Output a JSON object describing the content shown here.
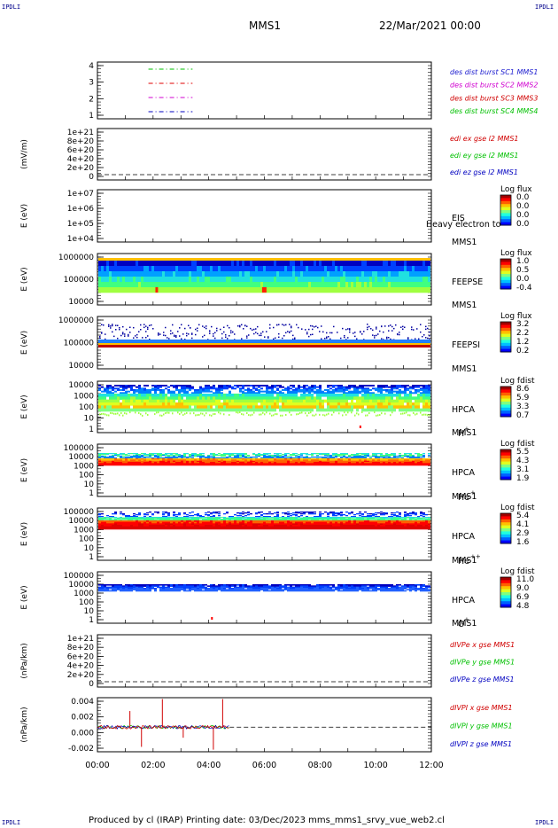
{
  "header": {
    "corner_label": "IPDLI",
    "mission": "MMS1",
    "datetime": "22/Mar/2021 00:00"
  },
  "footer": {
    "text": "Produced by cl (IRAP)   Printing date: 03/Dec/2023   mms_mms1_srvy_vue_web2.cl"
  },
  "colors": {
    "red": "#e00000",
    "green": "#00c000",
    "blue": "#0000c0",
    "magenta": "#d000d0",
    "darkred": "#c00000"
  },
  "chart_data": [
    {
      "type": "line",
      "panel": "burst",
      "yticks": [
        "4",
        "3",
        "2",
        "1"
      ],
      "ylim": [
        0.5,
        4.5
      ],
      "legend": [
        {
          "label": "des dist burst SC1 MMS1",
          "color": "#2020d0"
        },
        {
          "label": "des dist burst SC2 MMS2",
          "color": "#d000d0"
        },
        {
          "label": "des dist burst SC3 MMS3",
          "color": "#d00000"
        },
        {
          "label": "des dist burst SC4 MMS4",
          "color": "#00c000"
        }
      ],
      "series": [
        {
          "level": 4,
          "x_start": "01:50",
          "x_end": "03:25",
          "color": "#00c000"
        },
        {
          "level": 3,
          "x_start": "01:50",
          "x_end": "03:25",
          "color": "#e00000"
        },
        {
          "level": 2,
          "x_start": "01:50",
          "x_end": "03:25",
          "color": "#d000d0"
        },
        {
          "level": 1,
          "x_start": "01:50",
          "x_end": "03:25",
          "color": "#0000c0"
        }
      ]
    },
    {
      "type": "line",
      "panel": "edi",
      "ylabel": "(mV/m)",
      "yticks": [
        "1e+21",
        "8e+20",
        "6e+20",
        "4e+20",
        "2e+20",
        "0"
      ],
      "ylim": [
        0,
        1e+21
      ],
      "legend": [
        {
          "label": "edi ex gse l2 MMS1",
          "color": "#d00000"
        },
        {
          "label": "edi ey gse l2 MMS1",
          "color": "#00c000"
        },
        {
          "label": "edi ez gse l2 MMS1",
          "color": "#0000c0"
        }
      ]
    },
    {
      "type": "heatmap",
      "panel": "eis",
      "ylabel": "E (eV)",
      "yticks": [
        "1e+07",
        "1e+06",
        "1e+05",
        "1e+04"
      ],
      "instrument": "EIS",
      "instrument_line2": "MMS1",
      "overlay_text": "Heavy electron to",
      "cbar_title": "Log flux",
      "cbar_ticks": [
        "0.0",
        "0.0",
        "0.0",
        "0.0"
      ]
    },
    {
      "type": "heatmap",
      "panel": "feepse",
      "ylabel": "E (eV)",
      "yticks": [
        "1000000",
        "100000",
        "10000"
      ],
      "instrument": "FEEPSE",
      "instrument_line2": "MMS1",
      "cbar_title": "Log flux",
      "cbar_ticks": [
        "1.0",
        "0.5",
        "0.0",
        "-0.4"
      ]
    },
    {
      "type": "heatmap",
      "panel": "feepsi",
      "ylabel": "E (eV)",
      "yticks": [
        "1000000",
        "100000",
        "10000"
      ],
      "instrument": "FEEPSI",
      "instrument_line2": "MMS1",
      "cbar_title": "Log flux",
      "cbar_ticks": [
        "3.2",
        "2.2",
        "1.2",
        "0.2"
      ]
    },
    {
      "type": "heatmap",
      "panel": "hpca_h",
      "ylabel": "E (eV)",
      "yticks": [
        "10000",
        "1000",
        "100",
        "10",
        "1"
      ],
      "instrument": "HPCA",
      "instrument_line2": "MMS1",
      "species": "H",
      "species_charge": "+",
      "cbar_title": "Log fdist",
      "cbar_ticks": [
        "8.6",
        "5.9",
        "3.3",
        "0.7"
      ]
    },
    {
      "type": "heatmap",
      "panel": "hpca_he",
      "ylabel": "E (eV)",
      "yticks": [
        "100000",
        "10000",
        "1000",
        "100",
        "10",
        "1"
      ],
      "instrument": "HPCA",
      "instrument_line2": "MMS1",
      "species": "He",
      "species_charge": "+",
      "cbar_title": "Log fdist",
      "cbar_ticks": [
        "5.5",
        "4.3",
        "3.1",
        "1.9"
      ]
    },
    {
      "type": "heatmap",
      "panel": "hpca_hepp",
      "ylabel": "E (eV)",
      "yticks": [
        "100000",
        "10000",
        "1000",
        "100",
        "10",
        "1"
      ],
      "instrument": "HPCA",
      "instrument_line2": "MMS1",
      "species": "He",
      "species_charge": "++",
      "cbar_title": "Log fdist",
      "cbar_ticks": [
        "5.4",
        "4.1",
        "2.9",
        "1.6"
      ]
    },
    {
      "type": "heatmap",
      "panel": "hpca_o",
      "ylabel": "E (eV)",
      "yticks": [
        "100000",
        "10000",
        "1000",
        "100",
        "10",
        "1"
      ],
      "instrument": "HPCA",
      "instrument_line2": "MMS1",
      "species": "O",
      "species_charge": "+",
      "cbar_title": "Log fdist",
      "cbar_ticks": [
        "11.0",
        "9.0",
        "6.9",
        "4.8"
      ]
    },
    {
      "type": "line",
      "panel": "divpe",
      "ylabel": "(nPa/km)",
      "yticks": [
        "1e+21",
        "8e+20",
        "6e+20",
        "4e+20",
        "2e+20",
        "0"
      ],
      "ylim": [
        0,
        1e+21
      ],
      "legend": [
        {
          "label": "dIVPe x gse MMS1",
          "color": "#d00000"
        },
        {
          "label": "dIVPe y gse MMS1",
          "color": "#00c000"
        },
        {
          "label": "dIVPe z gse MMS1",
          "color": "#0000c0"
        }
      ]
    },
    {
      "type": "line",
      "panel": "divpi",
      "ylabel": "(nPa/km)",
      "yticks": [
        "0.004",
        "0.002",
        "0.000",
        "-0.002"
      ],
      "ylim": [
        -0.0035,
        0.0042
      ],
      "legend": [
        {
          "label": "dIVPI x gse MMS1",
          "color": "#d00000"
        },
        {
          "label": "dIVPI y gse MMS1",
          "color": "#00c000"
        },
        {
          "label": "dIVPI z gse MMS1",
          "color": "#0000c0"
        }
      ],
      "spikes": [
        {
          "x": "01:10",
          "y": 0.0023
        },
        {
          "x": "01:35",
          "y": -0.0028
        },
        {
          "x": "02:20",
          "y": 0.004
        },
        {
          "x": "03:05",
          "y": -0.0015
        },
        {
          "x": "04:10",
          "y": -0.0032
        },
        {
          "x": "04:30",
          "y": 0.004
        }
      ]
    }
  ],
  "xaxis": {
    "ticks": [
      "00:00",
      "02:00",
      "04:00",
      "06:00",
      "08:00",
      "10:00",
      "12:00"
    ]
  }
}
